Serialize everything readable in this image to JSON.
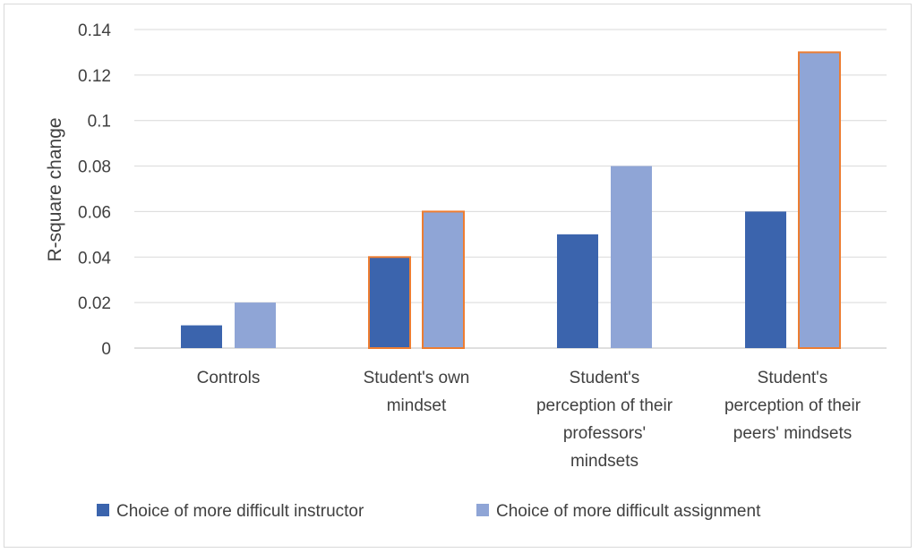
{
  "chart_data": {
    "type": "bar",
    "categories": [
      "Controls",
      "Student's own mindset",
      "Student's perception of their professors' mindsets",
      "Student's perception of their peers' mindsets"
    ],
    "category_lines": [
      [
        "Controls"
      ],
      [
        "Student's own",
        "mindset"
      ],
      [
        "Student's",
        "perception of their",
        "professors'",
        "mindsets"
      ],
      [
        "Student's",
        "perception of their",
        "peers' mindsets"
      ]
    ],
    "series": [
      {
        "name": "Choice of more difficult instructor",
        "color": "#3b64ad",
        "values": [
          0.01,
          0.04,
          0.05,
          0.06
        ],
        "highlight": [
          false,
          true,
          false,
          false
        ]
      },
      {
        "name": "Choice of more difficult assignment",
        "color": "#8fa5d6",
        "values": [
          0.02,
          0.06,
          0.08,
          0.13
        ],
        "highlight": [
          false,
          true,
          false,
          true
        ]
      }
    ],
    "highlight_color": "#ed7d31",
    "ylabel": "R-square change",
    "xlabel": "",
    "ylim": [
      0,
      0.14
    ],
    "yticks": [
      "0",
      "0.02",
      "0.04",
      "0.06",
      "0.08",
      "0.1",
      "0.12",
      "0.14"
    ],
    "grid": true,
    "legend_position": "bottom"
  }
}
